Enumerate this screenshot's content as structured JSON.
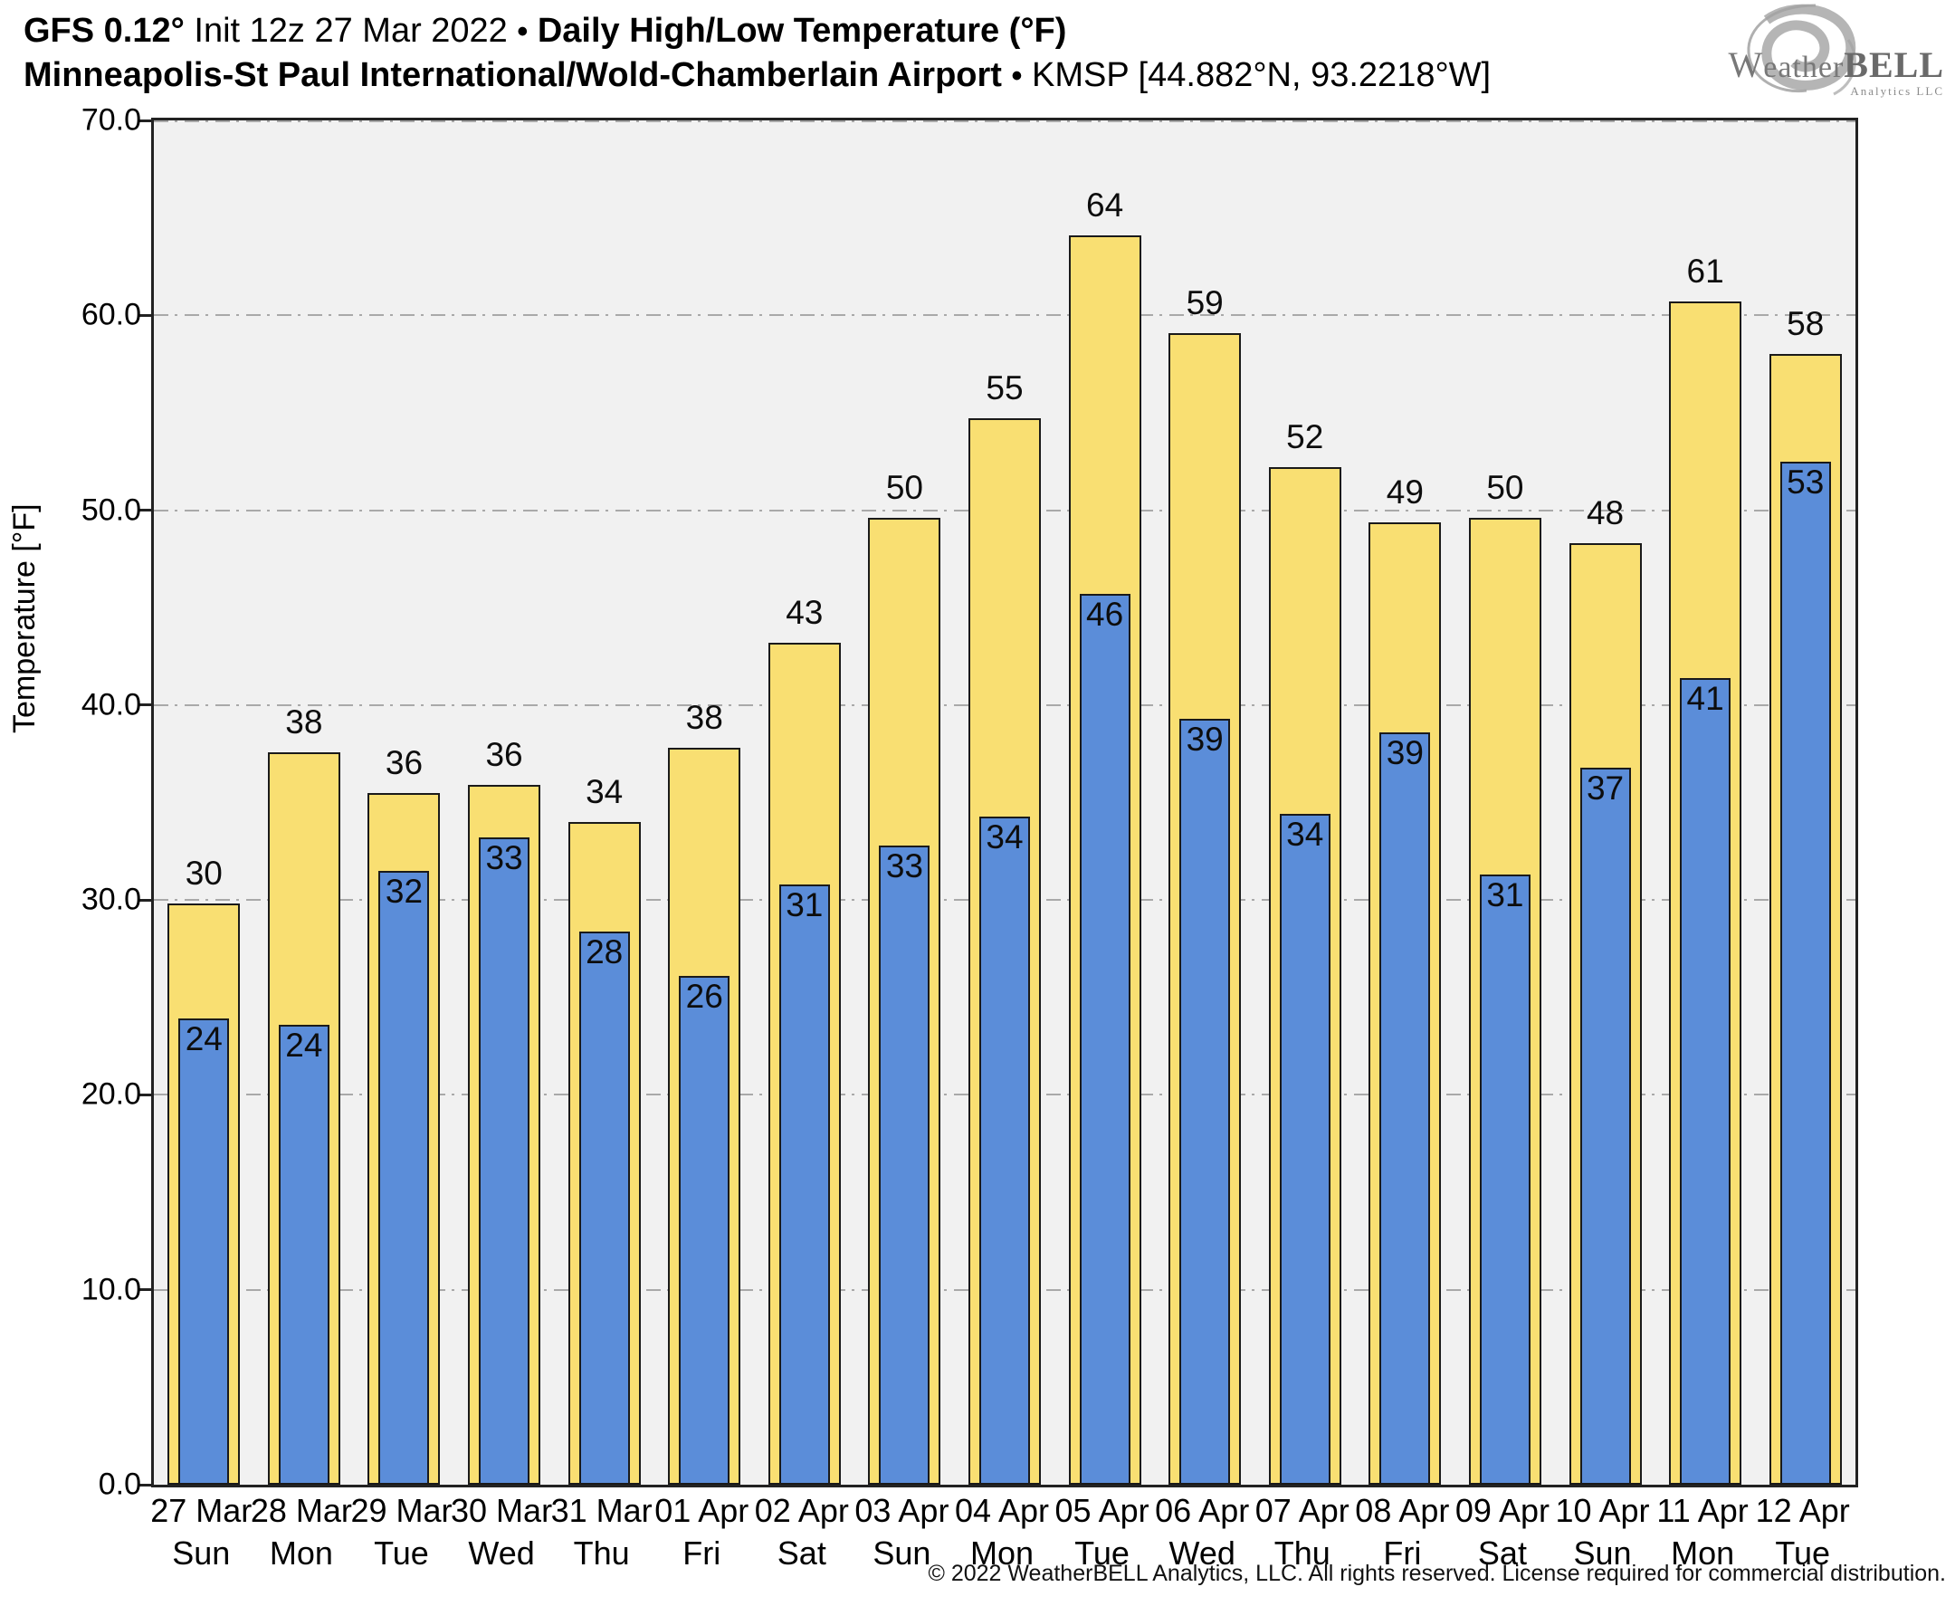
{
  "header": {
    "line1": {
      "model": "GFS 0.12°",
      "init": " Init 12z 27 Mar 2022 ",
      "bullet": "•",
      "product": " Daily High/Low Temperature (°F)"
    },
    "line2": {
      "station": "Minneapolis-St Paul International/Wold-Chamberlain Airport ",
      "bullet": "•",
      "info": " KMSP [44.882°N, 93.2218°W]"
    }
  },
  "logo": {
    "brand_w": "W",
    "brand_eather": "eather",
    "brand_bell": "BELL",
    "sub": "Analytics LLC"
  },
  "footer": {
    "copyright": "© 2022 WeatherBELL Analytics, LLC. All rights reserved. License required for commercial distribution."
  },
  "colors": {
    "high_fill": "#F9DF72",
    "low_fill": "#5B8DD9",
    "bar_border": "#1A1A1A",
    "plot_bg": "#F1F1F1",
    "grid": "#A9A9A9",
    "frame": "#222222"
  },
  "chart_data": {
    "type": "bar",
    "title": "GFS 0.12° Init 12z 27 Mar 2022 • Daily High/Low Temperature (°F) — Minneapolis-St Paul International/Wold-Chamberlain Airport KMSP",
    "xlabel": "",
    "ylabel": "Temperature [°F]",
    "ylim": [
      0,
      70
    ],
    "grid": "horizontal dash-dot",
    "legend_position": "none",
    "yticks": [
      {
        "label": "70.0",
        "value": 70
      },
      {
        "label": "60.0",
        "value": 60
      },
      {
        "label": "50.0",
        "value": 50
      },
      {
        "label": "40.0",
        "value": 40
      },
      {
        "label": "30.0",
        "value": 30
      },
      {
        "label": "20.0",
        "value": 20
      },
      {
        "label": "10.0",
        "value": 10
      },
      {
        "label": "0.0",
        "value": 0
      }
    ],
    "series": [
      {
        "name": "Daily High",
        "color": "#F9DF72",
        "values": [
          30,
          38,
          36,
          36,
          34,
          38,
          43,
          50,
          55,
          64,
          59,
          52,
          49,
          50,
          48,
          61,
          58
        ]
      },
      {
        "name": "Daily Low",
        "color": "#5B8DD9",
        "values": [
          24,
          24,
          32,
          33,
          28,
          26,
          31,
          33,
          34,
          46,
          39,
          34,
          39,
          31,
          37,
          41,
          53
        ]
      }
    ],
    "days": [
      {
        "date": "27 Mar",
        "day": "Sun",
        "high": 30,
        "low": 24,
        "high_bar_top": 29.8,
        "low_bar_top": 23.9
      },
      {
        "date": "28 Mar",
        "day": "Mon",
        "high": 38,
        "low": 24,
        "high_bar_top": 37.6,
        "low_bar_top": 23.6
      },
      {
        "date": "29 Mar",
        "day": "Tue",
        "high": 36,
        "low": 32,
        "high_bar_top": 35.5,
        "low_bar_top": 31.5
      },
      {
        "date": "30 Mar",
        "day": "Wed",
        "high": 36,
        "low": 33,
        "high_bar_top": 35.9,
        "low_bar_top": 33.2
      },
      {
        "date": "31 Mar",
        "day": "Thu",
        "high": 34,
        "low": 28,
        "high_bar_top": 34.0,
        "low_bar_top": 28.4
      },
      {
        "date": "01 Apr",
        "day": "Fri",
        "high": 38,
        "low": 26,
        "high_bar_top": 37.8,
        "low_bar_top": 26.1
      },
      {
        "date": "02 Apr",
        "day": "Sat",
        "high": 43,
        "low": 31,
        "high_bar_top": 43.2,
        "low_bar_top": 30.8
      },
      {
        "date": "03 Apr",
        "day": "Sun",
        "high": 50,
        "low": 33,
        "high_bar_top": 49.6,
        "low_bar_top": 32.8
      },
      {
        "date": "04 Apr",
        "day": "Mon",
        "high": 55,
        "low": 34,
        "high_bar_top": 54.7,
        "low_bar_top": 34.3
      },
      {
        "date": "05 Apr",
        "day": "Tue",
        "high": 64,
        "low": 46,
        "high_bar_top": 64.1,
        "low_bar_top": 45.7
      },
      {
        "date": "06 Apr",
        "day": "Wed",
        "high": 59,
        "low": 39,
        "high_bar_top": 59.1,
        "low_bar_top": 39.3
      },
      {
        "date": "07 Apr",
        "day": "Thu",
        "high": 52,
        "low": 34,
        "high_bar_top": 52.2,
        "low_bar_top": 34.4
      },
      {
        "date": "08 Apr",
        "day": "Fri",
        "high": 49,
        "low": 39,
        "high_bar_top": 49.4,
        "low_bar_top": 38.6
      },
      {
        "date": "09 Apr",
        "day": "Sat",
        "high": 50,
        "low": 31,
        "high_bar_top": 49.6,
        "low_bar_top": 31.3
      },
      {
        "date": "10 Apr",
        "day": "Sun",
        "high": 48,
        "low": 37,
        "high_bar_top": 48.3,
        "low_bar_top": 36.8
      },
      {
        "date": "11 Apr",
        "day": "Mon",
        "high": 61,
        "low": 41,
        "high_bar_top": 60.7,
        "low_bar_top": 41.4
      },
      {
        "date": "12 Apr",
        "day": "Tue",
        "high": 58,
        "low": 53,
        "high_bar_top": 58.0,
        "low_bar_top": 52.5
      }
    ]
  }
}
